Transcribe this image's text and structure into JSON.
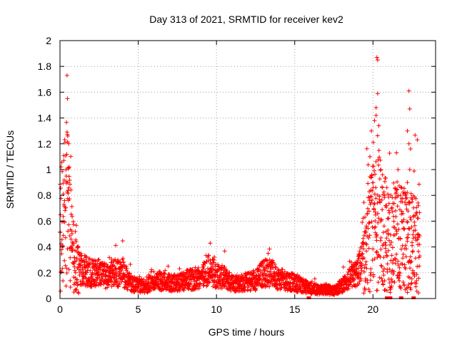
{
  "chart_data": {
    "type": "scatter",
    "title": "Day 313 of 2021, SRMTID for receiver kev2",
    "xlabel": "GPS time / hours",
    "ylabel": "SRMTID / TECUs",
    "xlim": [
      0,
      24
    ],
    "ylim": [
      0,
      2
    ],
    "xticks": [
      0,
      5,
      10,
      15,
      20
    ],
    "yticks": [
      0,
      0.2,
      0.4,
      0.6,
      0.8,
      1,
      1.2,
      1.4,
      1.6,
      1.8,
      2
    ],
    "grid": true,
    "marker": "+",
    "series": [
      {
        "name": "SRMTID",
        "color": "#ff0000",
        "profile": [
          [
            0.0,
            0.55
          ],
          [
            0.2,
            0.6
          ],
          [
            0.4,
            0.75
          ],
          [
            0.6,
            0.55
          ],
          [
            0.8,
            0.35
          ],
          [
            1.0,
            0.25
          ],
          [
            1.5,
            0.22
          ],
          [
            2.0,
            0.2
          ],
          [
            2.5,
            0.2
          ],
          [
            3.0,
            0.17
          ],
          [
            3.5,
            0.2
          ],
          [
            4.0,
            0.2
          ],
          [
            4.5,
            0.12
          ],
          [
            5.0,
            0.1
          ],
          [
            5.5,
            0.1
          ],
          [
            6.0,
            0.12
          ],
          [
            6.5,
            0.14
          ],
          [
            7.0,
            0.12
          ],
          [
            7.5,
            0.12
          ],
          [
            8.0,
            0.14
          ],
          [
            8.5,
            0.15
          ],
          [
            9.0,
            0.17
          ],
          [
            9.5,
            0.22
          ],
          [
            10.0,
            0.18
          ],
          [
            10.5,
            0.16
          ],
          [
            11.0,
            0.12
          ],
          [
            11.5,
            0.12
          ],
          [
            12.0,
            0.13
          ],
          [
            12.5,
            0.14
          ],
          [
            13.0,
            0.2
          ],
          [
            13.5,
            0.2
          ],
          [
            14.0,
            0.15
          ],
          [
            14.5,
            0.14
          ],
          [
            15.0,
            0.12
          ],
          [
            15.5,
            0.1
          ],
          [
            16.0,
            0.08
          ],
          [
            16.5,
            0.07
          ],
          [
            17.0,
            0.07
          ],
          [
            17.5,
            0.06
          ],
          [
            18.0,
            0.1
          ],
          [
            18.5,
            0.15
          ],
          [
            19.0,
            0.2
          ],
          [
            19.5,
            0.35
          ],
          [
            20.0,
            0.55
          ],
          [
            20.5,
            0.6
          ],
          [
            21.0,
            0.45
          ],
          [
            21.5,
            0.5
          ],
          [
            22.0,
            0.45
          ],
          [
            22.5,
            0.45
          ],
          [
            22.8,
            0.4
          ]
        ],
        "spikes": [
          [
            0.45,
            1.73
          ],
          [
            0.48,
            1.55
          ],
          [
            0.5,
            1.26
          ],
          [
            0.55,
            1.2
          ],
          [
            0.4,
            0.95
          ],
          [
            0.5,
            0.9
          ],
          [
            9.6,
            0.43
          ],
          [
            13.3,
            0.35
          ],
          [
            20.25,
            1.87
          ],
          [
            20.3,
            1.85
          ],
          [
            20.3,
            1.59
          ],
          [
            20.2,
            1.48
          ],
          [
            20.1,
            1.38
          ],
          [
            20.2,
            1.42
          ],
          [
            19.9,
            1.3
          ],
          [
            19.8,
            1.1
          ],
          [
            20.5,
            1.0
          ],
          [
            21.5,
            1.13
          ],
          [
            21.6,
            1.0
          ],
          [
            22.3,
            1.61
          ],
          [
            22.35,
            1.47
          ],
          [
            22.2,
            1.3
          ],
          [
            22.3,
            1.2
          ],
          [
            22.4,
            1.16
          ],
          [
            22.35,
            1.0
          ],
          [
            22.2,
            0.9
          ],
          [
            22.5,
            0.75
          ],
          [
            22.9,
            0.72
          ],
          [
            22.85,
            0.5
          ]
        ],
        "baseline_marks": [
          15.9,
          20.9,
          21.1,
          21.8,
          22.6
        ],
        "x_range": [
          0,
          23.0
        ],
        "approx_point_count": 2600
      }
    ]
  }
}
